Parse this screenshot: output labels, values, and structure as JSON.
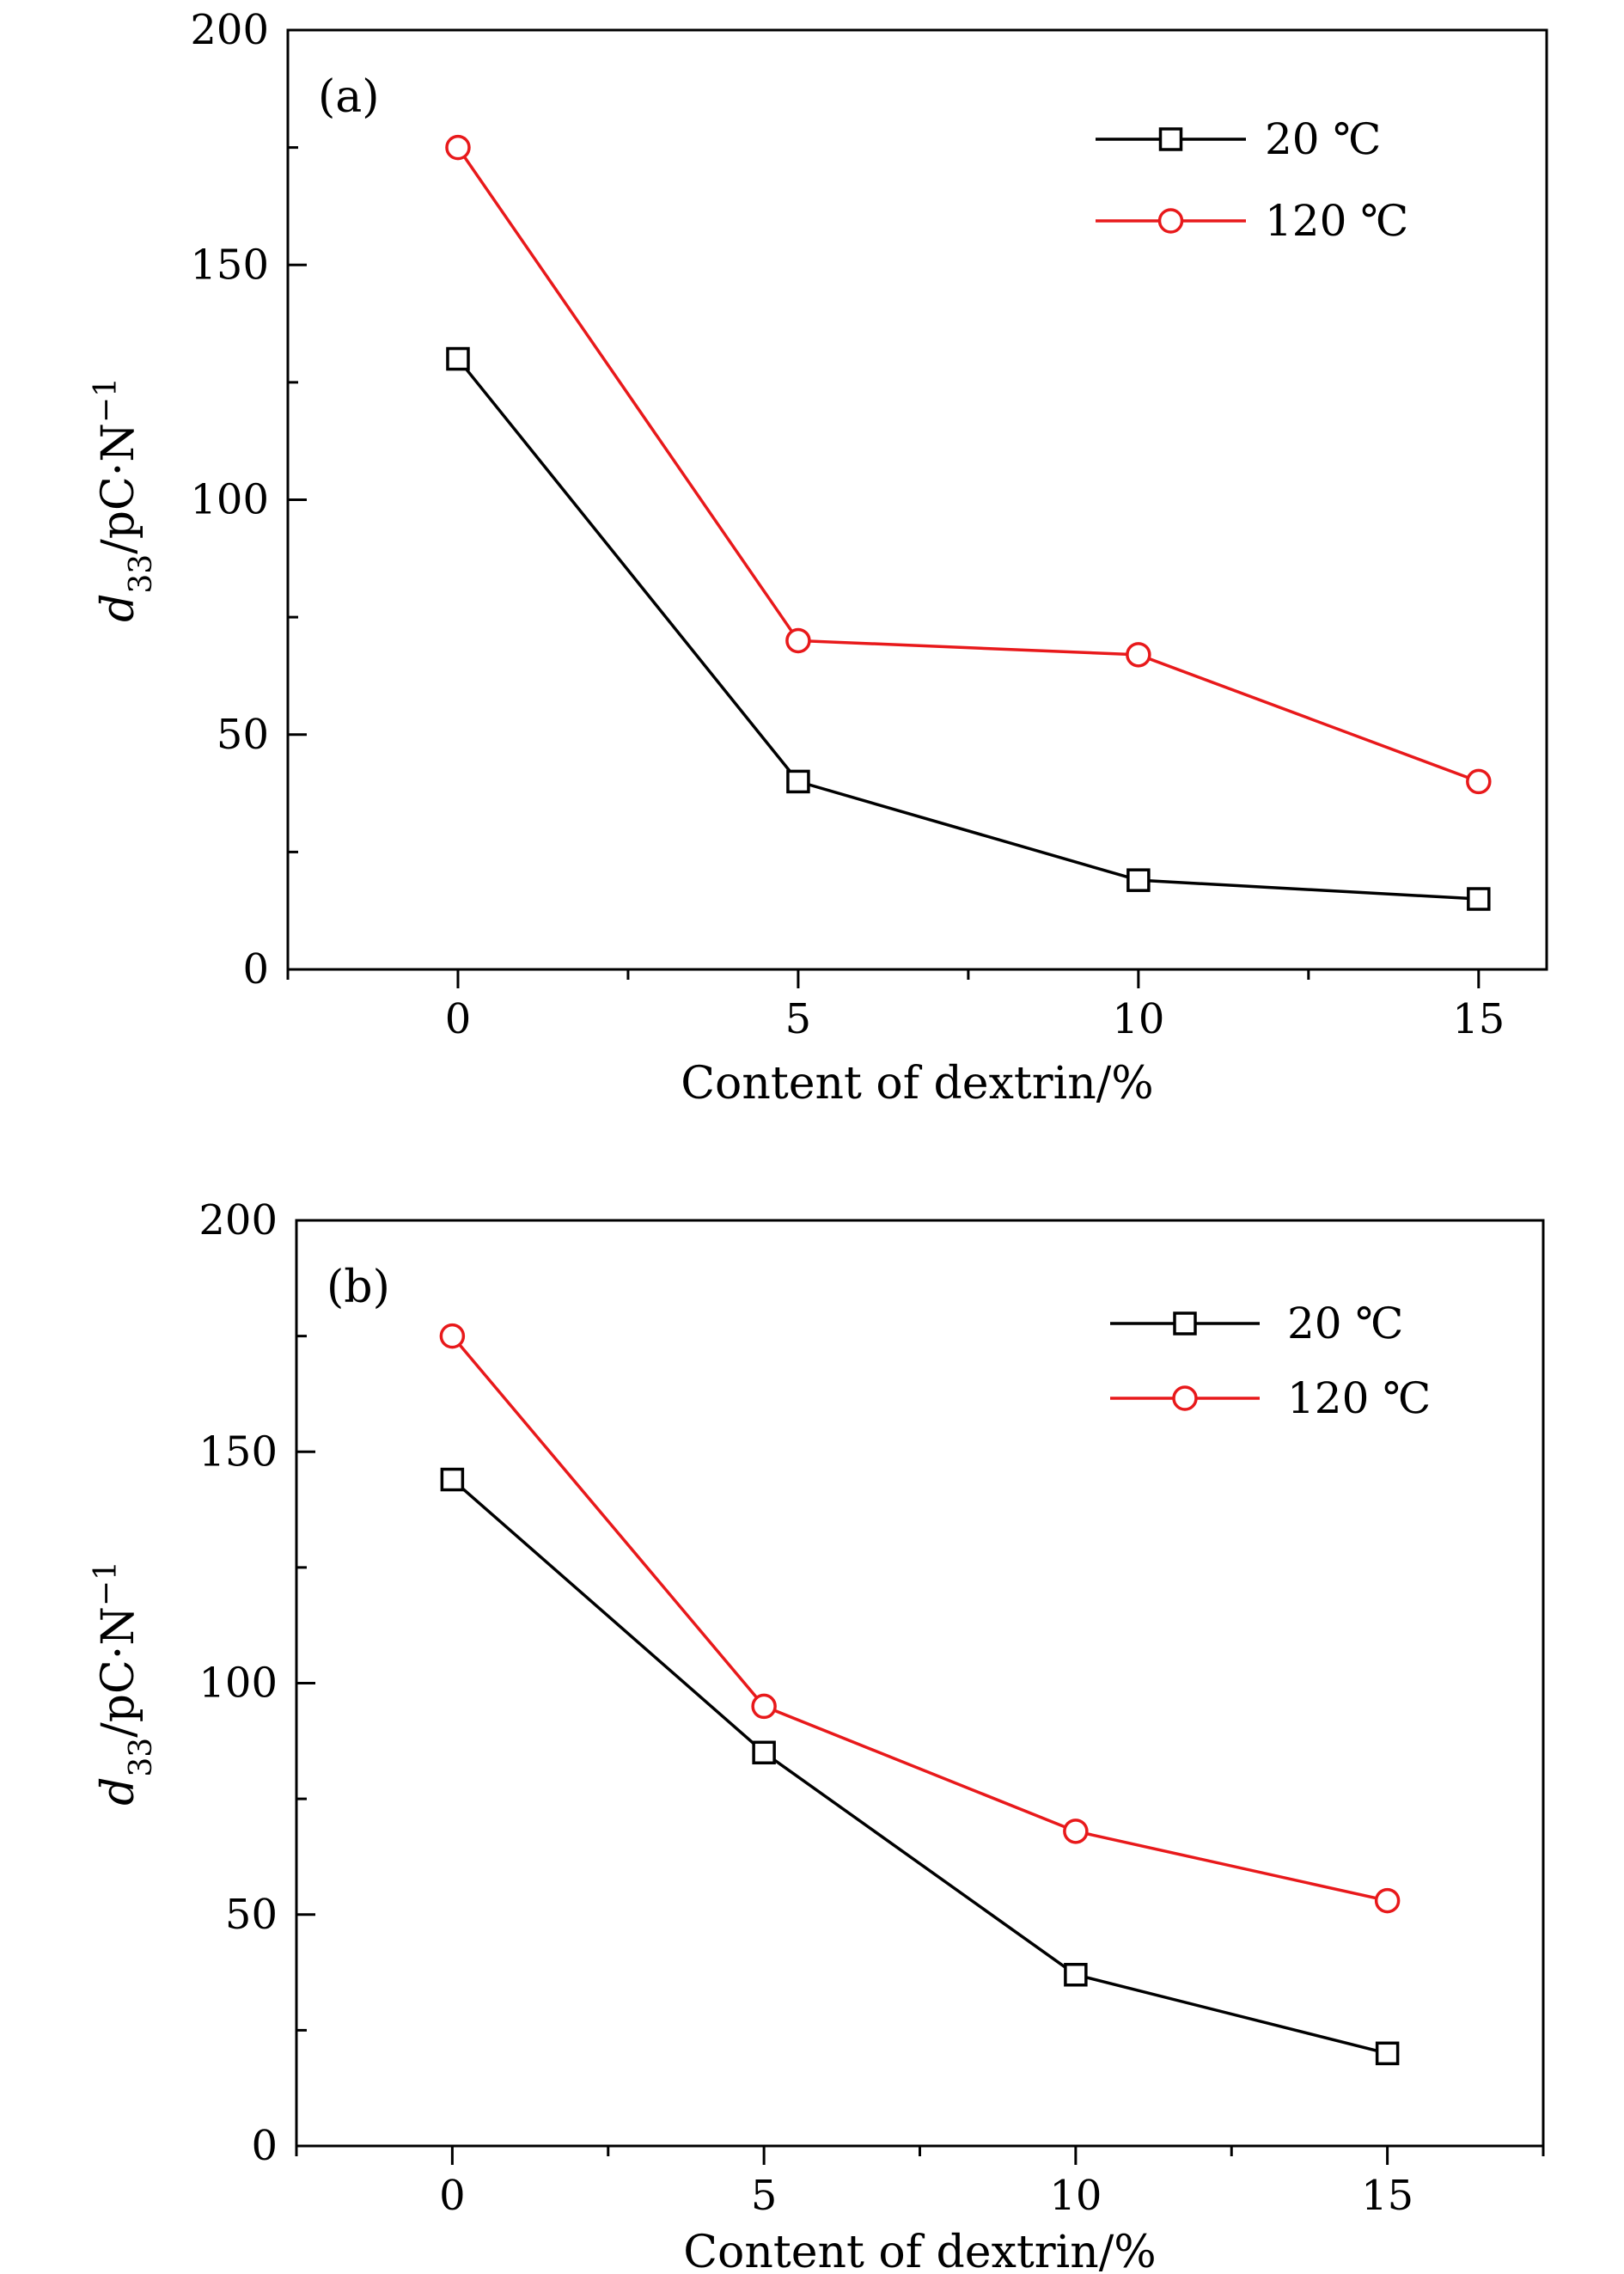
{
  "chart_data": [
    {
      "type": "line",
      "panel_label": "(a)",
      "xlabel": "Content of dextrin/%",
      "ylabel": "d33/pC·N−1",
      "ylabel_parts": {
        "symbol": "d",
        "subscript": "33",
        "unit": "/pC·N",
        "superscript": "−1"
      },
      "x": [
        0,
        5,
        10,
        15
      ],
      "xticks": [
        0,
        5,
        10,
        15
      ],
      "xlim": [
        -2.5,
        16
      ],
      "yticks": [
        0,
        50,
        100,
        150,
        200
      ],
      "ylim": [
        0,
        200
      ],
      "legend_position": "top-right",
      "series": [
        {
          "name": "20 ℃",
          "color": "#000000",
          "marker": "square",
          "values": [
            130,
            40,
            19,
            15
          ]
        },
        {
          "name": "120 ℃",
          "color": "#e8191b",
          "marker": "circle",
          "values": [
            175,
            70,
            67,
            40
          ]
        }
      ]
    },
    {
      "type": "line",
      "panel_label": "(b)",
      "xlabel": "Content of dextrin/%",
      "ylabel": "d33/pC·N−1",
      "ylabel_parts": {
        "symbol": "d",
        "subscript": "33",
        "unit": "/pC·N",
        "superscript": "−1"
      },
      "x": [
        0,
        5,
        10,
        15
      ],
      "xticks": [
        0,
        5,
        10,
        15
      ],
      "xlim": [
        -2.5,
        17.5
      ],
      "yticks": [
        0,
        50,
        100,
        150,
        200
      ],
      "ylim": [
        0,
        200
      ],
      "legend_position": "top-right",
      "series": [
        {
          "name": "20 ℃",
          "color": "#000000",
          "marker": "square",
          "values": [
            144,
            85,
            37,
            20
          ]
        },
        {
          "name": "120 ℃",
          "color": "#e8191b",
          "marker": "circle",
          "values": [
            175,
            95,
            68,
            53
          ]
        }
      ]
    }
  ]
}
